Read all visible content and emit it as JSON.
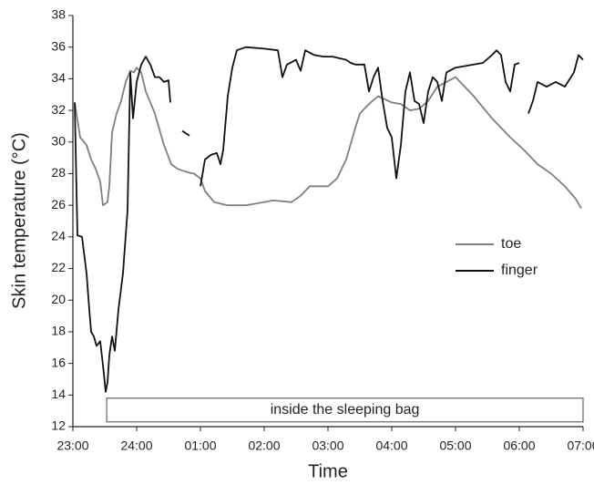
{
  "chart_data": {
    "type": "line",
    "xlabel": "Time",
    "ylabel": "Skin temperature (°C)",
    "xlim": [
      0,
      8
    ],
    "xticks": [
      {
        "value": 0,
        "label": "23:00"
      },
      {
        "value": 1,
        "label": "24:00"
      },
      {
        "value": 2,
        "label": "01:00"
      },
      {
        "value": 3,
        "label": "02:00"
      },
      {
        "value": 4,
        "label": "03:00"
      },
      {
        "value": 5,
        "label": "04:00"
      },
      {
        "value": 6,
        "label": "05:00"
      },
      {
        "value": 7,
        "label": "06:00"
      },
      {
        "value": 8,
        "label": "07:00"
      }
    ],
    "ylim": [
      12,
      38
    ],
    "yticks": [
      12,
      14,
      16,
      18,
      20,
      22,
      24,
      26,
      28,
      30,
      32,
      34,
      36,
      38
    ],
    "legend": "right",
    "band": {
      "label": "inside the sleeping bag",
      "x": [
        0.53,
        8
      ],
      "y": [
        12.3,
        13.8
      ]
    },
    "series": [
      {
        "name": "toe",
        "color": "#7f7f7f",
        "x": [
          0.029,
          0.114,
          0.214,
          0.286,
          0.357,
          0.429,
          0.471,
          0.543,
          0.571,
          0.614,
          0.686,
          0.757,
          0.829,
          0.9,
          0.957,
          1.0,
          1.071,
          1.143,
          1.286,
          1.429,
          1.543,
          1.643,
          1.786,
          1.9,
          2.0,
          2.071,
          2.214,
          2.429,
          2.714,
          3.143,
          3.429,
          3.571,
          3.714,
          4.0,
          4.143,
          4.286,
          4.429,
          4.5,
          4.643,
          4.786,
          5.0,
          5.143,
          5.286,
          5.429,
          5.571,
          5.714,
          5.857,
          6.0,
          6.286,
          6.571,
          6.857,
          7.071,
          7.286,
          7.5,
          7.714,
          7.886,
          7.971
        ],
        "values": [
          32.5,
          30.3,
          29.8,
          28.9,
          28.3,
          27.5,
          26,
          26.2,
          27.2,
          30.6,
          31.8,
          32.6,
          33.8,
          34.5,
          34.4,
          34.7,
          34.4,
          33.2,
          31.8,
          29.8,
          28.6,
          28.3,
          28.1,
          28,
          27.7,
          26.9,
          26.2,
          26,
          26,
          26.3,
          26.2,
          26.6,
          27.2,
          27.2,
          27.7,
          28.9,
          30.9,
          31.8,
          32.4,
          32.9,
          32.5,
          32.4,
          32,
          32.1,
          32.6,
          33.5,
          33.8,
          34.1,
          32.9,
          31.5,
          30.3,
          29.5,
          28.6,
          28,
          27.2,
          26.4,
          25.8
        ]
      },
      {
        "name": "finger",
        "color": "#111111",
        "x": [
          0.029,
          0.071,
          0.143,
          0.214,
          0.257,
          0.286,
          0.329,
          0.371,
          0.429,
          0.471,
          0.514,
          0.543,
          0.571,
          0.614,
          0.657,
          0.714,
          0.786,
          0.857,
          0.9,
          0.943,
          1.0,
          1.071,
          1.143,
          1.214,
          1.286,
          1.357,
          1.429,
          1.5,
          1.529,
          null,
          1.714,
          1.829,
          null,
          2.0,
          2.071,
          2.171,
          2.257,
          2.314,
          2.357,
          2.429,
          2.5,
          2.571,
          2.714,
          3.0,
          3.214,
          3.286,
          3.357,
          3.5,
          3.571,
          3.643,
          3.786,
          3.929,
          4.071,
          4.286,
          4.357,
          4.429,
          4.571,
          4.643,
          4.714,
          4.786,
          4.857,
          4.929,
          5.0,
          5.071,
          5.143,
          5.214,
          5.286,
          5.357,
          5.429,
          5.5,
          5.571,
          5.643,
          5.714,
          5.786,
          5.857,
          6.0,
          6.143,
          6.286,
          6.429,
          6.571,
          6.643,
          6.714,
          6.786,
          6.857,
          6.929,
          7.0,
          null,
          7.143,
          7.214,
          7.286,
          7.429,
          7.571,
          7.714,
          7.857,
          7.929,
          8.0
        ],
        "values": [
          32.5,
          24.1,
          24,
          21.7,
          19.4,
          18,
          17.7,
          17.1,
          17.4,
          15.9,
          14.2,
          14.8,
          16.5,
          17.7,
          16.8,
          19.4,
          21.7,
          25.7,
          34.4,
          31.5,
          33.8,
          34.9,
          35.4,
          34.9,
          34.1,
          34.1,
          33.8,
          33.9,
          32.5,
          null,
          30.7,
          30.4,
          null,
          27.2,
          28.9,
          29.2,
          29.3,
          28.6,
          29.5,
          32.9,
          34.7,
          35.8,
          36,
          35.9,
          35.8,
          34.1,
          34.9,
          35.2,
          34.5,
          35.8,
          35.5,
          35.4,
          35.4,
          35.2,
          35,
          34.9,
          34.9,
          33.2,
          34.1,
          34.7,
          32.6,
          30.9,
          30.3,
          27.7,
          29.8,
          33.2,
          34.4,
          32.6,
          32.4,
          31.2,
          33.2,
          34.1,
          33.8,
          32.6,
          34.4,
          34.7,
          34.8,
          34.9,
          35,
          35.5,
          35.8,
          35.5,
          33.8,
          33.2,
          34.9,
          35,
          null,
          31.8,
          32.6,
          33.8,
          33.5,
          33.8,
          33.5,
          34.4,
          35.5,
          35.2
        ]
      }
    ]
  }
}
